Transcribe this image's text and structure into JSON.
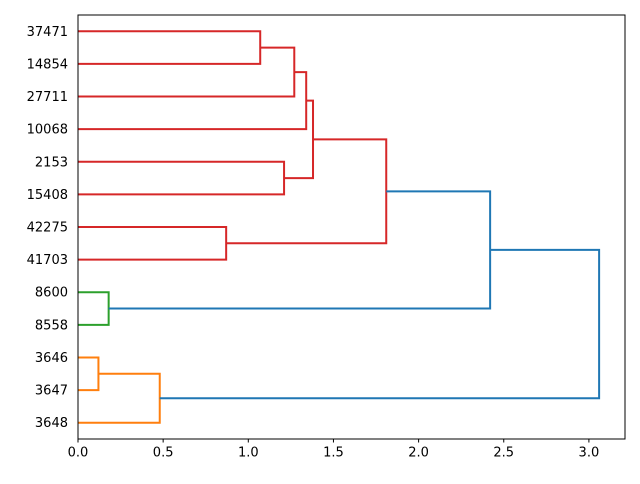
{
  "figure": {
    "background": "#ffffff",
    "title": ""
  },
  "chart_data": {
    "type": "dendrogram",
    "orientation": "right",
    "title": "",
    "xlabel": "",
    "ylabel": "",
    "grid": false,
    "legend": false,
    "xlim": [
      0,
      3.212
    ],
    "ylim": [
      0,
      130
    ],
    "x_tick_values": [
      0,
      0.5,
      1.0,
      1.5,
      2.0,
      2.5,
      3.0
    ],
    "x_tick_labels": [
      "0.0",
      "0.5",
      "1.0",
      "1.5",
      "2.0",
      "2.5",
      "3.0"
    ],
    "leaf_labels": [
      "37471",
      "14854",
      "27711",
      "10068",
      "2153",
      "15408",
      "42275",
      "41703",
      "8600",
      "8558",
      "3646",
      "3647",
      "3648"
    ],
    "colors": {
      "cluster_red": "#d62728",
      "cluster_green": "#2ca02c",
      "cluster_orange": "#ff7f0e",
      "above_threshold_blue": "#1f77b4",
      "axes": "#000000"
    },
    "links": [
      {
        "height": 1.07,
        "color": "#d62728",
        "child1": {
          "height": 0,
          "pos": 5
        },
        "child2": {
          "height": 0,
          "pos": 15
        }
      },
      {
        "height": 1.27,
        "color": "#d62728",
        "child1": {
          "height": 1.07,
          "pos": 10
        },
        "child2": {
          "height": 0,
          "pos": 25
        }
      },
      {
        "height": 1.34,
        "color": "#d62728",
        "child1": {
          "height": 1.27,
          "pos": 17.5
        },
        "child2": {
          "height": 0,
          "pos": 35
        }
      },
      {
        "height": 1.21,
        "color": "#d62728",
        "child1": {
          "height": 0,
          "pos": 45
        },
        "child2": {
          "height": 0,
          "pos": 55
        }
      },
      {
        "height": 1.38,
        "color": "#d62728",
        "child1": {
          "height": 1.34,
          "pos": 26.25
        },
        "child2": {
          "height": 1.21,
          "pos": 50
        }
      },
      {
        "height": 0.87,
        "color": "#d62728",
        "child1": {
          "height": 0,
          "pos": 65
        },
        "child2": {
          "height": 0,
          "pos": 75
        }
      },
      {
        "height": 1.81,
        "color": "#d62728",
        "child1": {
          "height": 1.38,
          "pos": 38.125
        },
        "child2": {
          "height": 0.87,
          "pos": 70
        }
      },
      {
        "height": 0.18,
        "color": "#2ca02c",
        "child1": {
          "height": 0,
          "pos": 85
        },
        "child2": {
          "height": 0,
          "pos": 95
        }
      },
      {
        "height": 0.12,
        "color": "#ff7f0e",
        "child1": {
          "height": 0,
          "pos": 105
        },
        "child2": {
          "height": 0,
          "pos": 115
        }
      },
      {
        "height": 0.48,
        "color": "#ff7f0e",
        "child1": {
          "height": 0.12,
          "pos": 110
        },
        "child2": {
          "height": 0,
          "pos": 125
        }
      },
      {
        "height": 2.42,
        "color": "#1f77b4",
        "child1": {
          "height": 1.81,
          "pos": 54.0625
        },
        "child2": {
          "height": 0.18,
          "pos": 90
        }
      },
      {
        "height": 3.06,
        "color": "#1f77b4",
        "child1": {
          "height": 2.42,
          "pos": 72.03125
        },
        "child2": {
          "height": 0.48,
          "pos": 117.5
        }
      }
    ]
  }
}
